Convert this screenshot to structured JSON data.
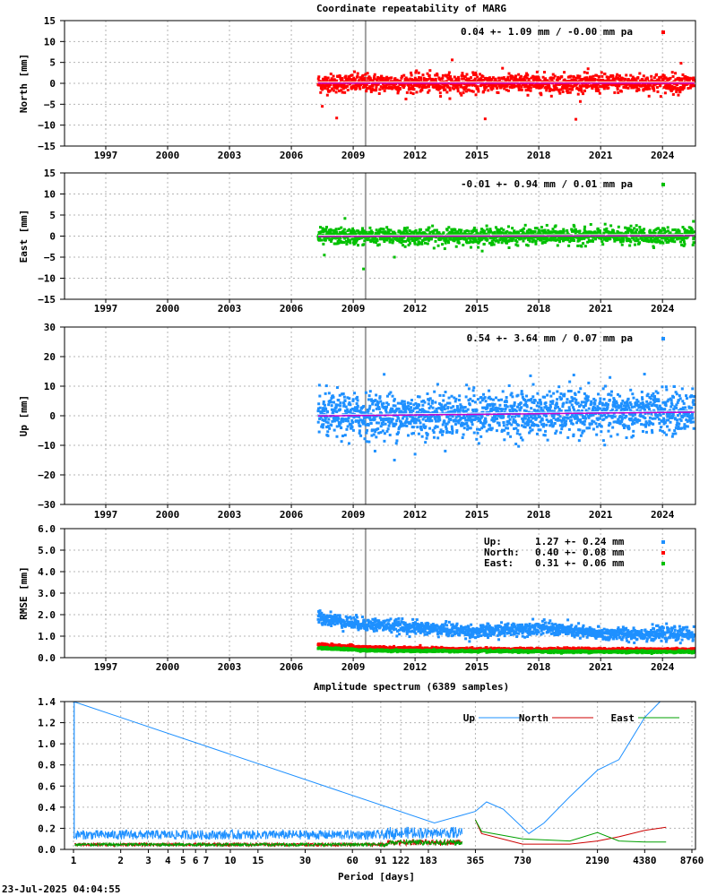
{
  "footer": {
    "timestamp": "23-Jul-2025 04:04:55"
  },
  "colors": {
    "north": "#ff0000",
    "east": "#00c000",
    "up": "#1e90ff",
    "mean": "#cc00cc",
    "event_line": "#a0a0a0"
  },
  "chart_data": [
    {
      "id": "north",
      "type": "scatter",
      "title": "Coordinate repeatability of MARG",
      "ylabel": "North [mm]",
      "ylim": [
        -15,
        15
      ],
      "yticks": [
        -15,
        -10,
        -5,
        0,
        5,
        10,
        15
      ],
      "xlim": [
        1995,
        2025.6
      ],
      "xticks": [
        1997,
        2000,
        2003,
        2006,
        2009,
        2012,
        2015,
        2018,
        2021,
        2024
      ],
      "series": [
        {
          "name": "North",
          "color": "#ff0000",
          "start": 2007.3,
          "end": 2025.55,
          "mean": 0.04,
          "sigma": 1.09,
          "trend": 0.0,
          "points": 1500,
          "outliers": [
            [
              2008.2,
              -8.3
            ],
            [
              2013.8,
              5.6
            ],
            [
              2015.4,
              -8.5
            ],
            [
              2019.8,
              -8.6
            ],
            [
              2024.9,
              4.8
            ],
            [
              2007.5,
              -5.5
            ]
          ]
        }
      ],
      "legend": "0.04 +- 1.09 mm / -0.00 mm pa",
      "event_line": 2009.6
    },
    {
      "id": "east",
      "type": "scatter",
      "title": "",
      "ylabel": "East [mm]",
      "ylim": [
        -15,
        15
      ],
      "yticks": [
        -15,
        -10,
        -5,
        0,
        5,
        10,
        15
      ],
      "xlim": [
        1995,
        2025.6
      ],
      "xticks": [
        1997,
        2000,
        2003,
        2006,
        2009,
        2012,
        2015,
        2018,
        2021,
        2024
      ],
      "series": [
        {
          "name": "East",
          "color": "#00c000",
          "start": 2007.3,
          "end": 2025.55,
          "mean": -0.01,
          "sigma": 0.94,
          "trend": 0.01,
          "points": 1500,
          "outliers": [
            [
              2009.5,
              -7.8
            ],
            [
              2008.6,
              4.2
            ],
            [
              2025.5,
              3.5
            ],
            [
              2007.6,
              -4.5
            ],
            [
              2011.0,
              -5.0
            ]
          ]
        }
      ],
      "legend": "-0.01 +- 0.94 mm /  0.01 mm pa",
      "event_line": 2009.6
    },
    {
      "id": "up",
      "type": "scatter",
      "title": "",
      "ylabel": "Up [mm]",
      "ylim": [
        -30,
        30
      ],
      "yticks": [
        -30,
        -20,
        -10,
        0,
        10,
        20,
        30
      ],
      "xlim": [
        1995,
        2025.6
      ],
      "xticks": [
        1997,
        2000,
        2003,
        2006,
        2009,
        2012,
        2015,
        2018,
        2021,
        2024
      ],
      "series": [
        {
          "name": "Up",
          "color": "#1e90ff",
          "start": 2007.3,
          "end": 2025.55,
          "mean": 0.54,
          "sigma": 3.64,
          "trend": 0.07,
          "points": 1800,
          "outliers": [
            [
              2011.0,
              -15.0
            ],
            [
              2010.5,
              14.0
            ],
            [
              2017.6,
              13.5
            ],
            [
              2012.0,
              -13.0
            ],
            [
              2019.5,
              11.5
            ]
          ]
        }
      ],
      "legend": "0.54 +- 3.64 mm /  0.07 mm pa",
      "event_line": 2009.6
    },
    {
      "id": "rmse",
      "type": "scatter",
      "title": "",
      "ylabel": "RMSE [mm]",
      "ylim": [
        0,
        6
      ],
      "yticks": [
        0.0,
        1.0,
        2.0,
        3.0,
        4.0,
        5.0,
        6.0
      ],
      "ytick_labels": [
        "0.0",
        "1.0",
        "2.0",
        "3.0",
        "4.0",
        "5.0",
        "6.0"
      ],
      "xlim": [
        1995,
        2025.6
      ],
      "xticks": [
        1997,
        2000,
        2003,
        2006,
        2009,
        2012,
        2015,
        2018,
        2021,
        2024
      ],
      "series": [
        {
          "name": "Up",
          "color": "#1e90ff",
          "label": "Up:",
          "value": "1.27 +- 0.24 mm",
          "level": [
            [
              2007.3,
              1.9
            ],
            [
              2009,
              1.6
            ],
            [
              2012,
              1.4
            ],
            [
              2015,
              1.2
            ],
            [
              2018,
              1.4
            ],
            [
              2021,
              1.1
            ],
            [
              2025.55,
              1.1
            ]
          ],
          "spread": 0.3
        },
        {
          "name": "North",
          "color": "#ff0000",
          "label": "North:",
          "value": "0.40 +- 0.08 mm",
          "level": [
            [
              2007.3,
              0.6
            ],
            [
              2010,
              0.45
            ],
            [
              2015,
              0.38
            ],
            [
              2020,
              0.38
            ],
            [
              2025.55,
              0.36
            ]
          ],
          "spread": 0.07
        },
        {
          "name": "East",
          "color": "#00c000",
          "label": "East:",
          "value": "0.31 +- 0.06 mm",
          "level": [
            [
              2007.3,
              0.45
            ],
            [
              2010,
              0.33
            ],
            [
              2015,
              0.3
            ],
            [
              2020,
              0.28
            ],
            [
              2025.55,
              0.27
            ]
          ],
          "spread": 0.05
        }
      ],
      "event_line": 2009.6
    },
    {
      "id": "spectrum",
      "type": "line",
      "title": "Amplitude spectrum (6389 samples)",
      "xlabel": "Period [days]",
      "xscale": "log",
      "xlim": [
        1,
        8760
      ],
      "xticks": [
        1,
        2,
        3,
        4,
        5,
        6,
        7,
        10,
        15,
        30,
        60,
        91,
        122,
        183,
        365,
        730,
        2190,
        4380,
        8760
      ],
      "ylim": [
        0,
        1.4
      ],
      "yticks": [
        0.0,
        0.2,
        0.4,
        0.6,
        0.8,
        1.0,
        1.2,
        1.4
      ],
      "ytick_labels": [
        "0.0",
        "0.2",
        "0.4",
        "0.6",
        "0.8",
        "1.0",
        "1.2",
        "1.4"
      ],
      "series": [
        {
          "name": "Up",
          "color": "#1e90ff",
          "peaks": [
            [
              1.0,
              1.4
            ],
            [
              365,
              0.36
            ],
            [
              200,
              0.25
            ],
            [
              430,
              0.45
            ],
            [
              550,
              0.38
            ],
            [
              800,
              0.15
            ],
            [
              1000,
              0.25
            ],
            [
              1460,
              0.5
            ],
            [
              2190,
              0.75
            ],
            [
              3000,
              0.85
            ],
            [
              4380,
              1.25
            ],
            [
              5500,
              1.4
            ]
          ]
        },
        {
          "name": "North",
          "color": "#cc0000",
          "peaks": [
            [
              365,
              0.28
            ],
            [
              400,
              0.15
            ],
            [
              730,
              0.05
            ],
            [
              1460,
              0.05
            ],
            [
              2190,
              0.08
            ],
            [
              3000,
              0.12
            ],
            [
              4380,
              0.18
            ],
            [
              6000,
              0.21
            ]
          ]
        },
        {
          "name": "East",
          "color": "#00a000",
          "peaks": [
            [
              365,
              0.28
            ],
            [
              400,
              0.17
            ],
            [
              730,
              0.1
            ],
            [
              1460,
              0.08
            ],
            [
              2190,
              0.16
            ],
            [
              3000,
              0.08
            ],
            [
              4380,
              0.07
            ],
            [
              6000,
              0.07
            ]
          ]
        }
      ]
    }
  ]
}
